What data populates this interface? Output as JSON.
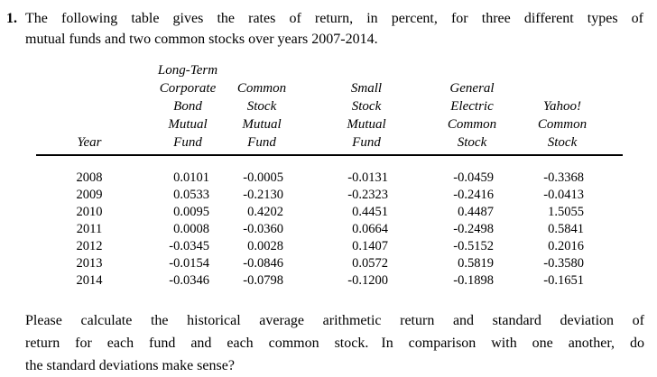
{
  "colors": {
    "text": "#000000",
    "background": "#ffffff",
    "rule": "#000000"
  },
  "problem": {
    "number": "1.",
    "line1": "The following table gives the rates of return, in percent, for three different types of",
    "line2": "mutual funds and two common stocks over years 2007-2014."
  },
  "table": {
    "headers": {
      "year": [
        "Year"
      ],
      "col1": [
        "Long-Term",
        "Corporate",
        "Bond",
        "Mutual",
        "Fund"
      ],
      "col2": [
        "Common",
        "Stock",
        "Mutual",
        "Fund"
      ],
      "col3": [
        "Small",
        "Stock",
        "Mutual",
        "Fund"
      ],
      "col4": [
        "General",
        "Electric",
        "Common",
        "Stock"
      ],
      "col5": [
        "Yahoo!",
        "Common",
        "Stock"
      ]
    },
    "rows": [
      [
        "2008",
        "0.0101",
        "-0.0005",
        "-0.0131",
        "-0.0459",
        "-0.3368"
      ],
      [
        "2009",
        "0.0533",
        "-0.2130",
        "-0.2323",
        "-0.2416",
        "-0.0413"
      ],
      [
        "2010",
        "0.0095",
        "0.4202",
        "0.4451",
        "0.4487",
        "1.5055"
      ],
      [
        "2011",
        "0.0008",
        "-0.0360",
        "0.0664",
        "-0.2498",
        "0.5841"
      ],
      [
        "2012",
        "-0.0345",
        "0.0028",
        "0.1407",
        "-0.5152",
        "0.2016"
      ],
      [
        "2013",
        "-0.0154",
        "-0.0846",
        "0.0572",
        "0.5819",
        "-0.3580"
      ],
      [
        "2014",
        "-0.0346",
        "-0.0798",
        "-0.1200",
        "-0.1898",
        "-0.1651"
      ]
    ]
  },
  "question": {
    "line1": "Please calculate the historical average arithmetic return and standard deviation of",
    "line2_part1": "return for each fund and each common stock.",
    "line2_part2": "In comparison with one another, do",
    "line3": "the standard deviations make sense?"
  }
}
